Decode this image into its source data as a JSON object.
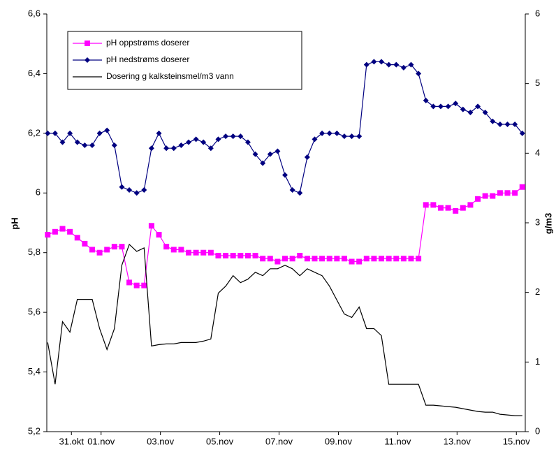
{
  "chart_data": {
    "type": "line",
    "ylabel": "pH",
    "y2label": "g/m3",
    "x": [
      -0.8,
      -0.55,
      -0.3,
      -0.05,
      0.2,
      0.45,
      0.7,
      0.95,
      1.2,
      1.45,
      1.7,
      1.95,
      2.2,
      2.45,
      2.7,
      2.95,
      3.2,
      3.45,
      3.7,
      3.95,
      4.2,
      4.45,
      4.7,
      4.95,
      5.2,
      5.45,
      5.7,
      5.95,
      6.2,
      6.45,
      6.7,
      6.95,
      7.2,
      7.45,
      7.7,
      7.95,
      8.2,
      8.45,
      8.7,
      8.95,
      9.2,
      9.45,
      9.7,
      9.95,
      10.2,
      10.45,
      10.7,
      10.95,
      11.2,
      11.45,
      11.7,
      11.95,
      12.2,
      12.45,
      12.7,
      12.95,
      13.2,
      13.45,
      13.7,
      13.95,
      14.2,
      14.45,
      14.7,
      14.95,
      15.2
    ],
    "xlim": [
      -0.83,
      15.3
    ],
    "xticks": [
      {
        "value": 0,
        "label": "31.okt"
      },
      {
        "value": 1,
        "label": "01.nov"
      },
      {
        "value": 3,
        "label": "03.nov"
      },
      {
        "value": 5,
        "label": "05.nov"
      },
      {
        "value": 7,
        "label": "07.nov"
      },
      {
        "value": 9,
        "label": "09.nov"
      },
      {
        "value": 11,
        "label": "11.nov"
      },
      {
        "value": 13,
        "label": "13.nov"
      },
      {
        "value": 15,
        "label": "15.nov"
      }
    ],
    "ylim": [
      5.2,
      6.6
    ],
    "yticks": [
      {
        "value": 5.2,
        "label": "5,2"
      },
      {
        "value": 5.4,
        "label": "5,4"
      },
      {
        "value": 5.6,
        "label": "5,6"
      },
      {
        "value": 5.8,
        "label": "5,8"
      },
      6,
      {
        "value": 6.2,
        "label": "6,2"
      },
      {
        "value": 6.4,
        "label": "6,4"
      },
      {
        "value": 6.6,
        "label": "6,6"
      }
    ],
    "y2lim": [
      0,
      6
    ],
    "y2ticks": [
      0,
      1,
      2,
      3,
      4,
      5,
      6
    ],
    "series": [
      {
        "name": "pH oppstrøms doserer",
        "color": "#ff00ff",
        "marker": "square",
        "values": [
          5.86,
          5.87,
          5.88,
          5.87,
          5.85,
          5.83,
          5.81,
          5.8,
          5.81,
          5.82,
          5.82,
          5.7,
          5.69,
          5.69,
          5.89,
          5.86,
          5.82,
          5.81,
          5.81,
          5.8,
          5.8,
          5.8,
          5.8,
          5.79,
          5.79,
          5.79,
          5.79,
          5.79,
          5.79,
          5.78,
          5.78,
          5.77,
          5.78,
          5.78,
          5.79,
          5.78,
          5.78,
          5.78,
          5.78,
          5.78,
          5.78,
          5.77,
          5.77,
          5.78,
          5.78,
          5.78,
          5.78,
          5.78,
          5.78,
          5.78,
          5.78,
          5.96,
          5.96,
          5.95,
          5.95,
          5.94,
          5.95,
          5.96,
          5.98,
          5.99,
          5.99,
          6.0,
          6.0,
          6.0,
          6.02
        ]
      },
      {
        "name": "pH nedstrøms doserer",
        "color": "#000080",
        "marker": "diamond",
        "values": [
          6.2,
          6.2,
          6.17,
          6.2,
          6.17,
          6.16,
          6.16,
          6.2,
          6.21,
          6.16,
          6.02,
          6.01,
          6.0,
          6.01,
          6.15,
          6.2,
          6.15,
          6.15,
          6.16,
          6.17,
          6.18,
          6.17,
          6.15,
          6.18,
          6.19,
          6.19,
          6.19,
          6.17,
          6.13,
          6.1,
          6.13,
          6.14,
          6.06,
          6.01,
          6.0,
          6.12,
          6.18,
          6.2,
          6.2,
          6.2,
          6.19,
          6.19,
          6.19,
          6.43,
          6.44,
          6.44,
          6.43,
          6.43,
          6.42,
          6.43,
          6.4,
          6.31,
          6.29,
          6.29,
          6.29,
          6.3,
          6.28,
          6.27,
          6.29,
          6.27,
          6.24,
          6.23,
          6.23,
          6.23,
          6.2
        ]
      },
      {
        "name": "Dosering g kalksteinsmel/m3 vann",
        "color": "#000000",
        "marker": "none",
        "axis": "y2",
        "values": [
          1.28,
          0.68,
          1.58,
          1.43,
          1.9,
          1.9,
          1.9,
          1.48,
          1.18,
          1.48,
          2.39,
          2.69,
          2.59,
          2.64,
          1.23,
          1.25,
          1.26,
          1.26,
          1.28,
          1.28,
          1.28,
          1.3,
          1.33,
          1.99,
          2.09,
          2.24,
          2.14,
          2.19,
          2.29,
          2.24,
          2.34,
          2.34,
          2.39,
          2.34,
          2.24,
          2.34,
          2.29,
          2.24,
          2.09,
          1.89,
          1.69,
          1.64,
          1.79,
          1.48,
          1.48,
          1.38,
          0.68,
          0.68,
          0.68,
          0.68,
          0.68,
          0.38,
          0.38,
          0.37,
          0.36,
          0.35,
          0.33,
          0.31,
          0.29,
          0.28,
          0.28,
          0.25,
          0.24,
          0.23,
          0.23
        ]
      }
    ]
  }
}
